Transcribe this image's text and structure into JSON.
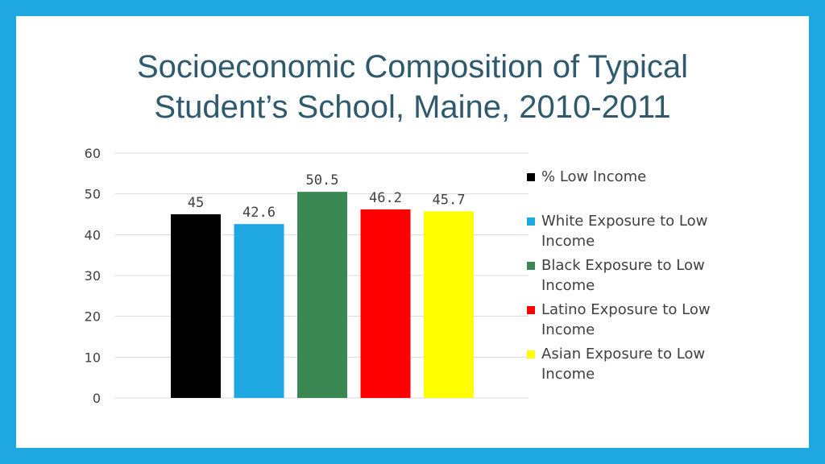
{
  "chart_data": {
    "type": "bar",
    "title_lines": [
      "Socioeconomic Composition of Typical",
      "Student’s School, Maine, 2010-2011"
    ],
    "categories": [
      "% Low Income",
      "White Exposure to Low Income",
      "Black Exposure to Low Income",
      "Latino Exposure to Low Income",
      "Asian Exposure to Low Income"
    ],
    "values": [
      45,
      42.6,
      50.5,
      46.2,
      45.7
    ],
    "value_labels": [
      "45",
      "42.6",
      "50.5",
      "46.2",
      "45.7"
    ],
    "colors": [
      "#000000",
      "#1ea7e1",
      "#3a8753",
      "#ff0000",
      "#ffff00"
    ],
    "ylim": [
      0,
      60
    ],
    "yticks": [
      "0",
      "10",
      "20",
      "30",
      "40",
      "50",
      "60"
    ],
    "legend": [
      {
        "line1": "% Low Income",
        "line2": ""
      },
      {
        "line1": "White Exposure to Low",
        "line2": "Income"
      },
      {
        "line1": "Black Exposure to Low",
        "line2": "Income"
      },
      {
        "line1": "Latino Exposure to Low",
        "line2": "Income"
      },
      {
        "line1": "Asian Exposure to Low",
        "line2": "Income"
      }
    ],
    "grid": true,
    "legend_position": "right"
  }
}
